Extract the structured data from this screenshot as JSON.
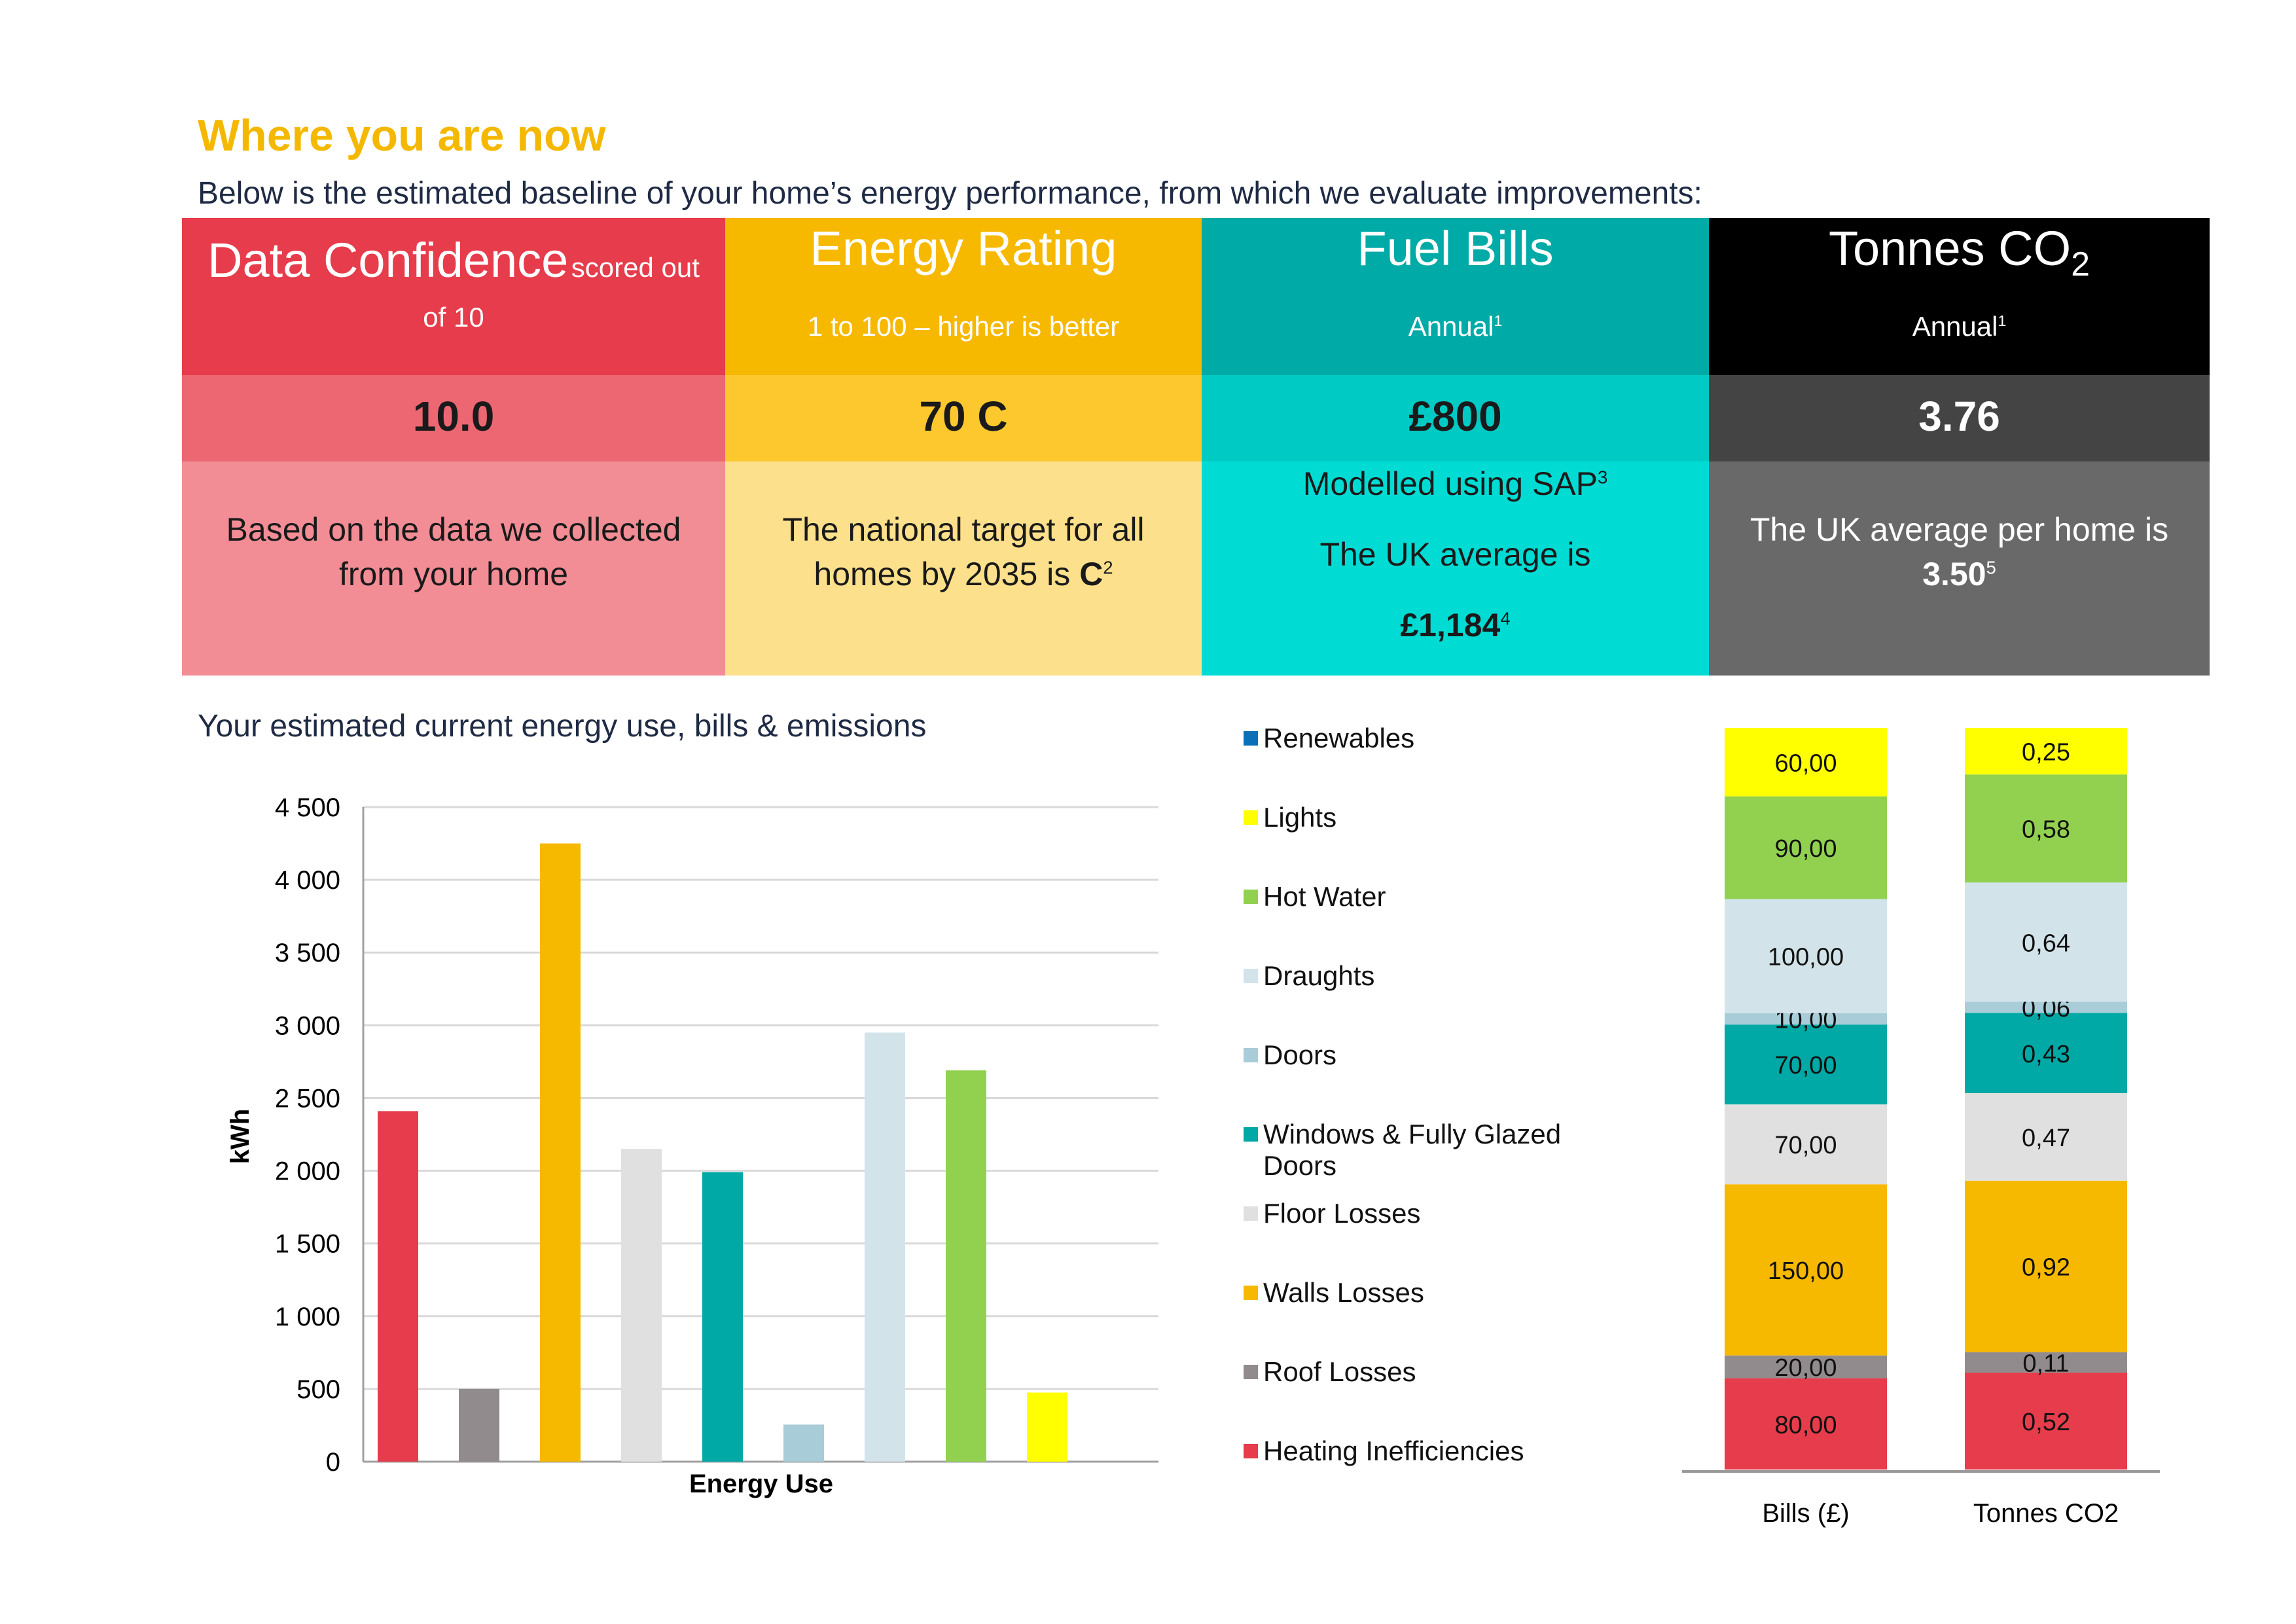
{
  "page": {
    "heading": "Where you are now",
    "intro": "Below is the estimated baseline of your home’s energy performance, from which we evaluate improvements:"
  },
  "cards": {
    "confidence": {
      "title": "Data Confidence",
      "title_suffix": "scored out",
      "sub": "of 10",
      "value": "10.0",
      "desc_line1": "Based on the data we collected",
      "desc_line2": "from your home"
    },
    "rating": {
      "title": "Energy Rating",
      "sub": "1 to 100 – higher is better",
      "value": "70 C",
      "desc_line1": "The national target for all",
      "desc_line2_pre": "homes by 2035 is ",
      "desc_bold": "C",
      "desc_sup": "2"
    },
    "bills": {
      "title": "Fuel Bills",
      "sub": "Annual",
      "sub_sup": "1",
      "value": "£800",
      "desc_line1": "Modelled using SAP",
      "desc_line1_sup": "3",
      "desc_line2": "The UK average is",
      "desc_bold": "£1,184",
      "desc_sup": "4"
    },
    "co2": {
      "title": "Tonnes CO",
      "title_sub": "2",
      "sub": "Annual",
      "sub_sup": "1",
      "value": "3.76",
      "desc_line1": "The UK average per home is",
      "desc_bold": "3.50",
      "desc_sup": "5"
    }
  },
  "colors": {
    "red": "#e63c4b",
    "grey": "#918b8e",
    "amber": "#f7b800",
    "light_grey": "#e0e0e0",
    "teal": "#00a9a5",
    "doors": "#a8ccd8",
    "draughts": "#d2e4ea",
    "green": "#92d14f",
    "yellow": "#ffff00",
    "blue": "#0a6fb7"
  },
  "chart_data": [
    {
      "type": "bar",
      "title": "Your estimated current energy use, bills & emissions",
      "xlabel": "Energy Use",
      "ylabel": "kWh",
      "ylim": [
        0,
        4500
      ],
      "yticks": [
        0,
        500,
        1000,
        1500,
        2000,
        2500,
        3000,
        3500,
        4000,
        4500
      ],
      "ytick_labels": [
        "0",
        "500",
        "1 000",
        "1 500",
        "2 000",
        "2 500",
        "3 000",
        "3 500",
        "4 000",
        "4 500"
      ],
      "grid": true,
      "categories": [
        "Heating Inefficiencies",
        "Roof Losses",
        "Walls Losses",
        "Floor Losses",
        "Windows & Fully Glazed Doors",
        "Doors",
        "Draughts",
        "Hot Water",
        "Lights"
      ],
      "values": [
        2410,
        500,
        4250,
        2150,
        1990,
        255,
        2950,
        2690,
        475
      ],
      "colors": [
        "#e63c4b",
        "#918b8e",
        "#f7b800",
        "#e0e0e0",
        "#00a9a5",
        "#a8ccd8",
        "#d2e4ea",
        "#92d14f",
        "#ffff00"
      ]
    },
    {
      "type": "bar",
      "stacked": true,
      "categories": [
        "Bills (£)",
        "Tonnes CO2"
      ],
      "legend": [
        "Renewables",
        "Lights",
        "Hot Water",
        "Draughts",
        "Doors",
        "Windows & Fully Glazed Doors",
        "Floor Losses",
        "Walls Losses",
        "Roof Losses",
        "Heating Inefficiencies"
      ],
      "legend_colors": [
        "#0a6fb7",
        "#ffff00",
        "#92d14f",
        "#d2e4ea",
        "#a8ccd8",
        "#00a9a5",
        "#e0e0e0",
        "#f7b800",
        "#918b8e",
        "#e63c4b"
      ],
      "series": [
        {
          "name": "Heating Inefficiencies",
          "color": "#e63c4b",
          "values": [
            80,
            0.52
          ],
          "labels": [
            "80,00",
            "0,52"
          ]
        },
        {
          "name": "Roof Losses",
          "color": "#918b8e",
          "values": [
            20,
            0.11
          ],
          "labels": [
            "20,00",
            "0,11"
          ]
        },
        {
          "name": "Walls Losses",
          "color": "#f7b800",
          "values": [
            150,
            0.92
          ],
          "labels": [
            "150,00",
            "0,92"
          ]
        },
        {
          "name": "Floor Losses",
          "color": "#e0e0e0",
          "values": [
            70,
            0.47
          ],
          "labels": [
            "70,00",
            "0,47"
          ]
        },
        {
          "name": "Windows & Fully Glazed Doors",
          "color": "#00a9a5",
          "values": [
            70,
            0.43
          ],
          "labels": [
            "70,00",
            "0,43"
          ]
        },
        {
          "name": "Doors",
          "color": "#a8ccd8",
          "values": [
            10,
            0.06
          ],
          "labels": [
            "10,00",
            "0,06"
          ]
        },
        {
          "name": "Draughts",
          "color": "#d2e4ea",
          "values": [
            100,
            0.64
          ],
          "labels": [
            "100,00",
            "0,64"
          ]
        },
        {
          "name": "Hot Water",
          "color": "#92d14f",
          "values": [
            90,
            0.58
          ],
          "labels": [
            "90,00",
            "0,58"
          ]
        },
        {
          "name": "Lights",
          "color": "#ffff00",
          "values": [
            60,
            0.25
          ],
          "labels": [
            "60,00",
            "0,25"
          ]
        }
      ]
    }
  ]
}
